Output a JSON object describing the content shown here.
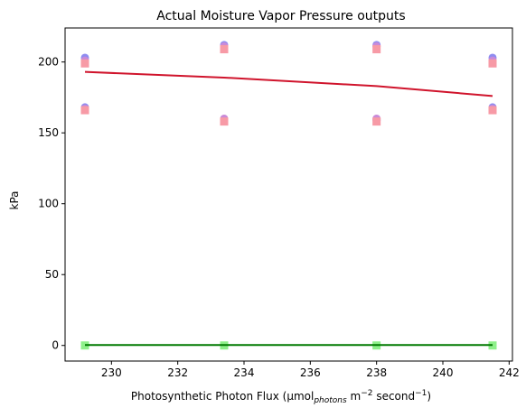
{
  "chart_data": {
    "type": "scatter",
    "title": "Actual Moisture Vapor Pressure outputs",
    "xlabel": {
      "prefix": "Photosynthetic Photon Flux (μmol",
      "sub1": "photons",
      "mid1": " m",
      "sup1": "−2",
      "mid2": " second",
      "sup2": "−1",
      "suffix": ")"
    },
    "ylabel": "kPa",
    "xlim": [
      228.6,
      242.1
    ],
    "ylim": [
      -11,
      224
    ],
    "xticks": [
      230,
      232,
      234,
      236,
      238,
      240,
      242
    ],
    "yticks": [
      0,
      50,
      100,
      150,
      200
    ],
    "grid": false,
    "series": [
      {
        "marker": "circle",
        "color": "#8f8cf0",
        "points": [
          [
            229.2,
            168
          ],
          [
            229.2,
            203
          ],
          [
            233.4,
            159
          ],
          [
            233.4,
            212
          ],
          [
            238.0,
            159
          ],
          [
            238.0,
            212
          ],
          [
            241.5,
            168
          ],
          [
            241.5,
            203
          ]
        ]
      },
      {
        "marker": "circle",
        "color": "#c98ad8",
        "points": [
          [
            229.2,
            167
          ],
          [
            229.2,
            201
          ],
          [
            233.4,
            160
          ],
          [
            233.4,
            211
          ],
          [
            238.0,
            160
          ],
          [
            238.0,
            211
          ],
          [
            241.5,
            167
          ],
          [
            241.5,
            201
          ]
        ]
      },
      {
        "marker": "square",
        "color": "#f79aa6",
        "points": [
          [
            229.2,
            166
          ],
          [
            229.2,
            199
          ],
          [
            233.4,
            158
          ],
          [
            233.4,
            209
          ],
          [
            238.0,
            158
          ],
          [
            238.0,
            209
          ],
          [
            241.5,
            166
          ],
          [
            241.5,
            199
          ]
        ]
      },
      {
        "marker": "square",
        "color": "#8ef08a",
        "points": [
          [
            229.2,
            0
          ],
          [
            233.4,
            0
          ],
          [
            238.0,
            0
          ],
          [
            241.5,
            0
          ]
        ]
      },
      {
        "marker": "line",
        "color": "#d0142c",
        "points": [
          [
            229.2,
            193
          ],
          [
            233.4,
            189
          ],
          [
            238.0,
            183
          ],
          [
            241.5,
            176
          ]
        ]
      },
      {
        "marker": "line",
        "color": "#007a00",
        "points": [
          [
            229.2,
            0.3
          ],
          [
            233.4,
            0.3
          ],
          [
            238.0,
            0.3
          ],
          [
            241.5,
            0.3
          ]
        ]
      }
    ]
  }
}
